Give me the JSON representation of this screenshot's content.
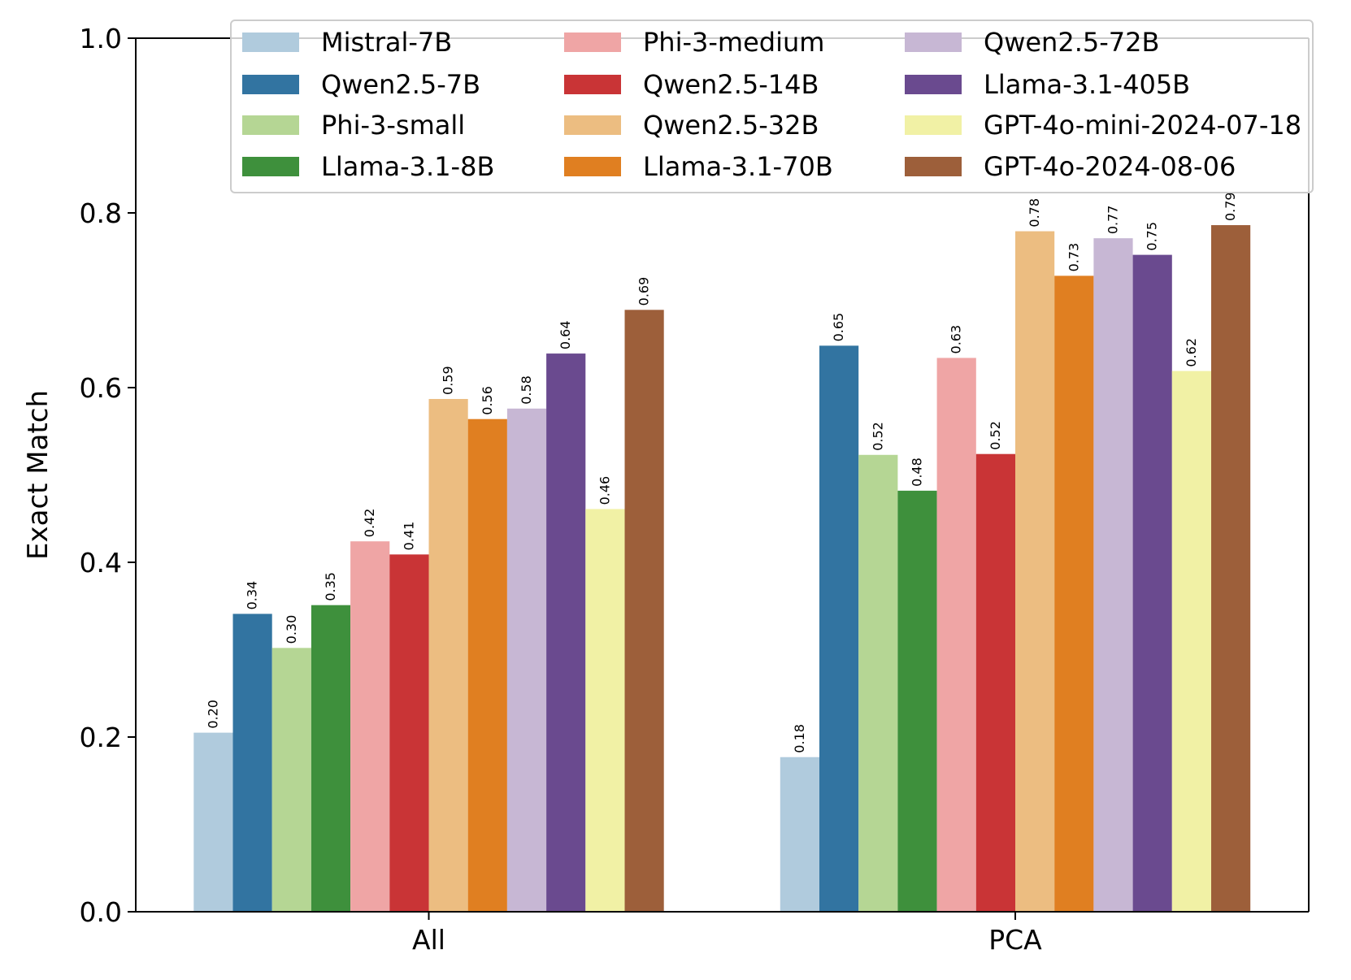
{
  "chart_data": {
    "type": "bar",
    "title": "",
    "xlabel": "",
    "ylabel": "Exact Match",
    "ylim": [
      0,
      1.0
    ],
    "yticks": [
      "0.0",
      "0.2",
      "0.4",
      "0.6",
      "0.8",
      "1.0"
    ],
    "grid": false,
    "legend_position": "top-right",
    "legend_columns": 3,
    "categories": [
      "All",
      "PCA"
    ],
    "series": [
      {
        "name": "Mistral-7B",
        "color": "#b0cbdd",
        "values": [
          0.205,
          0.177
        ],
        "labels": [
          "0.20",
          "0.18"
        ]
      },
      {
        "name": "Qwen2.5-7B",
        "color": "#3274a1",
        "values": [
          0.341,
          0.648
        ],
        "labels": [
          "0.34",
          "0.65"
        ]
      },
      {
        "name": "Phi-3-small",
        "color": "#b5d694",
        "values": [
          0.302,
          0.523
        ],
        "labels": [
          "0.30",
          "0.52"
        ]
      },
      {
        "name": "Llama-3.1-8B",
        "color": "#3e903c",
        "values": [
          0.351,
          0.482
        ],
        "labels": [
          "0.35",
          "0.48"
        ]
      },
      {
        "name": "Phi-3-medium",
        "color": "#efa5a5",
        "values": [
          0.424,
          0.634
        ],
        "labels": [
          "0.42",
          "0.63"
        ]
      },
      {
        "name": "Qwen2.5-14B",
        "color": "#c93436",
        "values": [
          0.409,
          0.524
        ],
        "labels": [
          "0.41",
          "0.52"
        ]
      },
      {
        "name": "Qwen2.5-32B",
        "color": "#ecbd81",
        "values": [
          0.587,
          0.779
        ],
        "labels": [
          "0.59",
          "0.78"
        ]
      },
      {
        "name": "Llama-3.1-70B",
        "color": "#e07f21",
        "values": [
          0.564,
          0.728
        ],
        "labels": [
          "0.56",
          "0.73"
        ]
      },
      {
        "name": "Qwen2.5-72B",
        "color": "#c7b7d4",
        "values": [
          0.576,
          0.771
        ],
        "labels": [
          "0.58",
          "0.77"
        ]
      },
      {
        "name": "Llama-3.1-405B",
        "color": "#6a4a8f",
        "values": [
          0.639,
          0.752
        ],
        "labels": [
          "0.64",
          "0.75"
        ]
      },
      {
        "name": "GPT-4o-mini-2024-07-18",
        "color": "#f1f1a5",
        "values": [
          0.461,
          0.619
        ],
        "labels": [
          "0.46",
          "0.62"
        ]
      },
      {
        "name": "GPT-4o-2024-08-06",
        "color": "#9d5f3a",
        "values": [
          0.689,
          0.786
        ],
        "labels": [
          "0.69",
          "0.79"
        ]
      }
    ]
  }
}
